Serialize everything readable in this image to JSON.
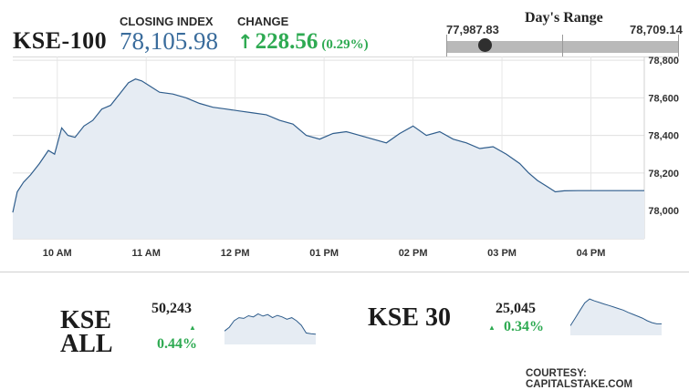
{
  "header": {
    "ticker": "KSE-100",
    "closing_label": "CLOSING INDEX",
    "closing_value": "78,105.98",
    "change_label": "CHANGE",
    "change_arrow": "↑",
    "change_value": "228.56",
    "change_percent": "(0.29%)"
  },
  "day_range": {
    "title": "Day's Range",
    "low": "77,987.83",
    "high": "78,709.14",
    "current_fraction": 0.165
  },
  "chart_data": {
    "type": "area",
    "title": "",
    "xlabel": "",
    "ylabel": "",
    "x_ticks": [
      "10 AM",
      "11 AM",
      "12 PM",
      "01 PM",
      "02 PM",
      "03 PM",
      "04 PM"
    ],
    "y_ticks": [
      "78,800",
      "78,600",
      "78,400",
      "78,200",
      "78,000"
    ],
    "ylim": [
      77850,
      78820
    ],
    "xlim": [
      9.5,
      16.6
    ],
    "grid": true,
    "series": [
      {
        "x": [
          9.5,
          9.55,
          9.62,
          9.7,
          9.8,
          9.9,
          9.97,
          10.05,
          10.12,
          10.2,
          10.3,
          10.4,
          10.5,
          10.6,
          10.7,
          10.8,
          10.88,
          10.95,
          11.05,
          11.15,
          11.3,
          11.45,
          11.6,
          11.75,
          11.9,
          12.05,
          12.2,
          12.35,
          12.5,
          12.65,
          12.8,
          12.95,
          13.1,
          13.25,
          13.4,
          13.55,
          13.7,
          13.85,
          14.0,
          14.15,
          14.3,
          14.45,
          14.6,
          14.75,
          14.9,
          15.05,
          15.2,
          15.3,
          15.4,
          15.5,
          15.6,
          15.7,
          15.85,
          16.0,
          16.2,
          16.4,
          16.6
        ],
        "values": [
          77990,
          78100,
          78150,
          78190,
          78250,
          78320,
          78300,
          78440,
          78400,
          78390,
          78450,
          78480,
          78540,
          78560,
          78620,
          78680,
          78700,
          78690,
          78660,
          78630,
          78620,
          78600,
          78570,
          78550,
          78540,
          78530,
          78520,
          78510,
          78480,
          78460,
          78400,
          78380,
          78410,
          78420,
          78400,
          78380,
          78360,
          78410,
          78450,
          78400,
          78420,
          78380,
          78360,
          78330,
          78340,
          78300,
          78250,
          78200,
          78160,
          78130,
          78100,
          78105,
          78106,
          78106,
          78106,
          78106,
          78106
        ]
      }
    ]
  },
  "mini_indices": [
    {
      "name_line1": "KSE",
      "name_line2": "ALL",
      "value": "50,243",
      "arrow": "▲",
      "change_percent": "0.44%",
      "sparkline": [
        0.35,
        0.45,
        0.62,
        0.7,
        0.68,
        0.75,
        0.72,
        0.8,
        0.74,
        0.78,
        0.7,
        0.76,
        0.72,
        0.66,
        0.7,
        0.62,
        0.5,
        0.3,
        0.28,
        0.27
      ]
    },
    {
      "name_line1": "KSE 30",
      "name_line2": "",
      "value": "25,045",
      "arrow": "▲",
      "change_percent": "0.34%",
      "sparkline": [
        0.25,
        0.45,
        0.65,
        0.85,
        0.95,
        0.9,
        0.86,
        0.82,
        0.78,
        0.74,
        0.7,
        0.66,
        0.6,
        0.55,
        0.5,
        0.45,
        0.38,
        0.33,
        0.3,
        0.3
      ]
    }
  ],
  "colors": {
    "accent_blue": "#3a6c9c",
    "line": "#2f5d8c",
    "area_fill": "#e6ecf3",
    "positive_green": "#2eaa52"
  },
  "footer": {
    "courtesy": "COURTESY: CAPITALSTAKE.COM"
  }
}
